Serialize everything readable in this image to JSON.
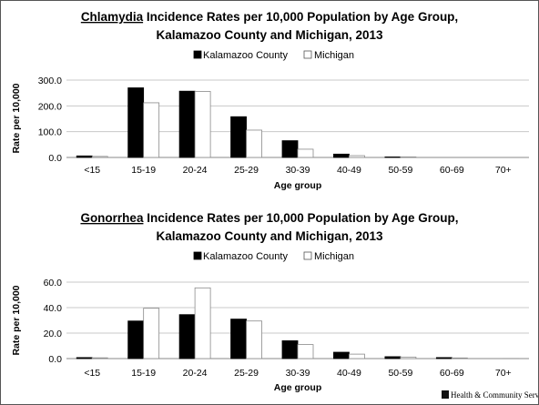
{
  "chart_data": [
    {
      "type": "bar",
      "title_disease": "Chlamydia",
      "title_rest": " Incidence Rates per 10,000 Population by Age Group,",
      "title_line2": "Kalamazoo County and Michigan, 2013",
      "categories": [
        "<15",
        "15-19",
        "20-24",
        "25-29",
        "30-39",
        "40-49",
        "50-59",
        "60-69",
        "70+"
      ],
      "series": [
        {
          "name": "Kalamazoo County",
          "color": "#000000",
          "values": [
            6,
            270,
            257,
            158,
            65,
            13,
            2,
            0,
            0
          ]
        },
        {
          "name": "Michigan",
          "color": "#ffffff",
          "values": [
            4,
            212,
            256,
            106,
            32,
            7,
            2,
            0,
            0
          ]
        }
      ],
      "ylabel": "Rate per 10,000",
      "xlabel": "Age group",
      "ylim": [
        0,
        300
      ],
      "yticks": [
        "0.0",
        "100.0",
        "200.0",
        "300.0"
      ],
      "grid": true,
      "legend_position": "top"
    },
    {
      "type": "bar",
      "title_disease": "Gonorrhea",
      "title_rest": " Incidence Rates per 10,000 Population by Age Group,",
      "title_line2": "Kalamazoo County and Michigan, 2013",
      "categories": [
        "<15",
        "15-19",
        "20-24",
        "25-29",
        "30-39",
        "40-49",
        "50-59",
        "60-69",
        "70+"
      ],
      "series": [
        {
          "name": "Kalamazoo County",
          "color": "#000000",
          "values": [
            0.8,
            29.5,
            34.5,
            31,
            14,
            5,
            1.5,
            0.8,
            0
          ]
        },
        {
          "name": "Michigan",
          "color": "#ffffff",
          "values": [
            0.6,
            39.5,
            55.5,
            29.5,
            11,
            3.5,
            1.2,
            0.5,
            0.1
          ]
        }
      ],
      "ylabel": "Rate per 10,000",
      "xlabel": "Age group",
      "ylim": [
        0,
        60
      ],
      "yticks": [
        "0.0",
        "20.0",
        "40.0",
        "60.0"
      ],
      "grid": true,
      "legend_position": "top"
    }
  ],
  "logo": {
    "text": "Health & Community Services"
  }
}
